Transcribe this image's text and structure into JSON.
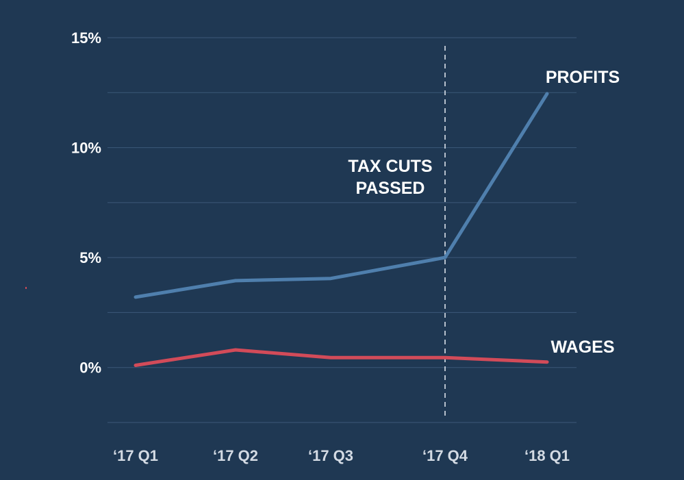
{
  "chart_data": {
    "type": "line",
    "title": "",
    "xlabel": "",
    "ylabel": "",
    "categories": [
      "‘17 Q1",
      "‘17 Q2",
      "‘17 Q3",
      "‘17 Q4",
      "‘18 Q1"
    ],
    "ylim": [
      -2.5,
      15
    ],
    "yticks": [
      0,
      5,
      10,
      15
    ],
    "ytick_labels": [
      "0%",
      "5%",
      "10%",
      "15%"
    ],
    "grid": true,
    "series": [
      {
        "name": "PROFITS",
        "color": "#4f7fad",
        "values": [
          3.2,
          3.95,
          4.05,
          5.0,
          12.45
        ]
      },
      {
        "name": "WAGES",
        "color": "#d24b59",
        "values": [
          0.1,
          0.8,
          0.45,
          0.45,
          0.25
        ]
      }
    ],
    "annotations": [
      {
        "text_lines": [
          "TAX CUTS",
          "PASSED"
        ],
        "at_category": "‘17 Q4",
        "style": "dashed vertical line"
      }
    ]
  }
}
